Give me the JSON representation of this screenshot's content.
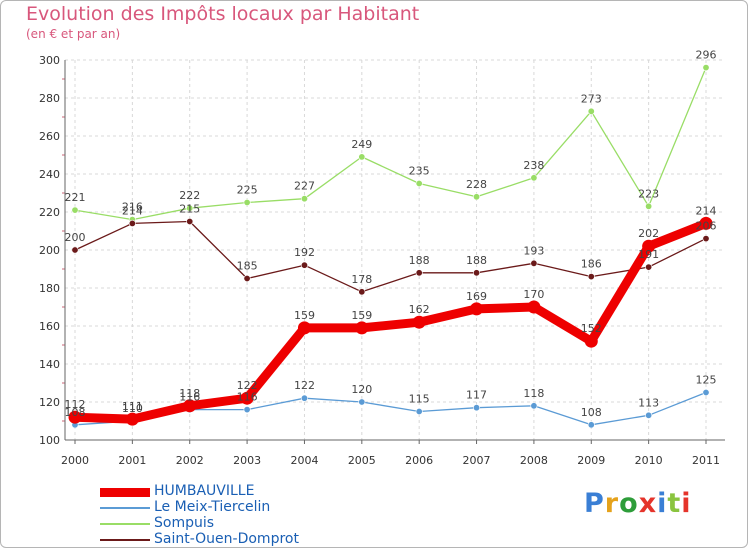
{
  "title": "Evolution des Impôts locaux par Habitant",
  "subtitle": "(en € et par an)",
  "logo": "Proxiti",
  "chart_data": {
    "type": "line",
    "title": "Evolution des Impôts locaux par Habitant",
    "ylabel": "(en € et par an)",
    "xlabel": "",
    "ylim": [
      100,
      300
    ],
    "yticks": [
      100,
      120,
      140,
      160,
      180,
      200,
      220,
      240,
      260,
      280,
      300
    ],
    "x": [
      "2000",
      "2001",
      "2002",
      "2003",
      "2004",
      "2005",
      "2006",
      "2007",
      "2008",
      "2009",
      "2010",
      "2011"
    ],
    "grid": true,
    "series": [
      {
        "name": "HUMBAUVILLE",
        "color": "#ee0000",
        "values": [
          112,
          111,
          118,
          122,
          159,
          159,
          162,
          169,
          170,
          152,
          202,
          214
        ]
      },
      {
        "name": "Le Meix-Tiercelin",
        "color": "#5b9bd5",
        "values": [
          108,
          110,
          116,
          116,
          122,
          120,
          115,
          117,
          118,
          108,
          113,
          125
        ]
      },
      {
        "name": "Sompuis",
        "color": "#99dd66",
        "values": [
          221,
          216,
          222,
          225,
          227,
          249,
          235,
          228,
          238,
          273,
          223,
          296
        ]
      },
      {
        "name": "Saint-Ouen-Domprot",
        "color": "#6b1a1a",
        "values": [
          200,
          214,
          215,
          185,
          192,
          178,
          188,
          188,
          193,
          186,
          191,
          206
        ]
      }
    ]
  }
}
